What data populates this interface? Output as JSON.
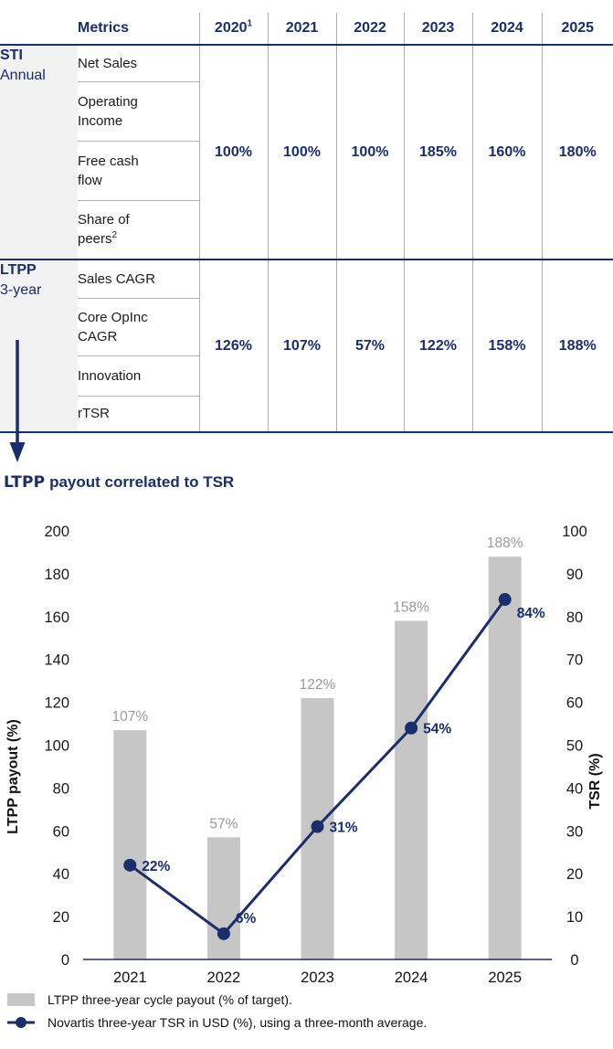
{
  "colors": {
    "navy": "#1b2d6b",
    "bar_gray": "#c6c6c6",
    "bar_label_gray": "#9a9a9a",
    "grid_gray": "#adadad",
    "group_column_bg": "#f2f2f2",
    "text_black": "#1a1a1a"
  },
  "table": {
    "metrics_header": "Metrics",
    "years": [
      {
        "label": "2020",
        "sup": "1"
      },
      {
        "label": "2021",
        "sup": ""
      },
      {
        "label": "2022",
        "sup": ""
      },
      {
        "label": "2023",
        "sup": ""
      },
      {
        "label": "2024",
        "sup": ""
      },
      {
        "label": "2025",
        "sup": ""
      }
    ],
    "groups": [
      {
        "name_line1": "STI",
        "name_line2": "Annual",
        "metrics": [
          {
            "label": "Net Sales",
            "sup": ""
          },
          {
            "label": "Operating Income",
            "sup": ""
          },
          {
            "label": "Free cash flow",
            "sup": ""
          },
          {
            "label": "Share of peers",
            "sup": "2"
          }
        ],
        "values": [
          "100%",
          "100%",
          "100%",
          "185%",
          "160%",
          "180%"
        ]
      },
      {
        "name_line1": "LTPP",
        "name_line2": "3-year",
        "metrics": [
          {
            "label": "Sales CAGR",
            "sup": ""
          },
          {
            "label": "Core OpInc CAGR",
            "sup": ""
          },
          {
            "label": "Innovation",
            "sup": ""
          },
          {
            "label": "rTSR",
            "sup": ""
          }
        ],
        "values": [
          "126%",
          "107%",
          "57%",
          "122%",
          "158%",
          "188%"
        ]
      }
    ]
  },
  "chart": {
    "title_strong": "LTPP",
    "title_rest": " payout correlated to TSR",
    "legend": [
      {
        "label": "LTPP three-year cycle payout (% of target)."
      },
      {
        "label": "Novartis three-year TSR in USD (%), using a three-month average."
      }
    ]
  },
  "chart_data": {
    "type": "bar",
    "title": "LTPP payout correlated to TSR",
    "categories": [
      "2021",
      "2022",
      "2023",
      "2024",
      "2025"
    ],
    "series": [
      {
        "name": "LTPP three-year cycle payout (% of target)",
        "type": "bar",
        "axis": "left",
        "values": [
          107,
          57,
          122,
          158,
          188
        ],
        "labels": [
          "107%",
          "57%",
          "122%",
          "158%",
          "188%"
        ],
        "color": "#c6c6c6",
        "label_color": "#9a9a9a"
      },
      {
        "name": "Novartis three-year TSR in USD (%), using a three-month average",
        "type": "line",
        "axis": "right",
        "values": [
          22,
          6,
          31,
          54,
          84
        ],
        "labels": [
          "22%",
          "6%",
          "31%",
          "54%",
          "84%"
        ],
        "color": "#1b2d6b"
      }
    ],
    "left_axis": {
      "label": "LTPP payout (%)",
      "min": 0,
      "max": 200,
      "step": 20
    },
    "right_axis": {
      "label": "TSR (%)",
      "min": 0,
      "max": 100,
      "step": 10
    },
    "grid": false,
    "legend_position": "bottom"
  }
}
